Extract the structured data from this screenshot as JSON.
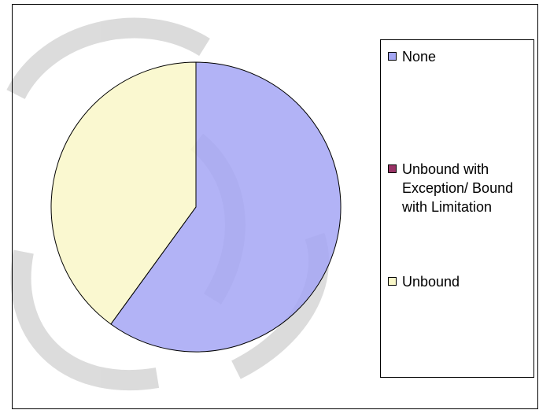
{
  "chart_data": {
    "type": "pie",
    "categories": [
      "None",
      "Unbound with Exception/ Bound with Limitation",
      "Unbound"
    ],
    "values": [
      60,
      0,
      40
    ],
    "colors": [
      "#a4a6f4",
      "#993366",
      "#f9f7c8"
    ]
  }
}
